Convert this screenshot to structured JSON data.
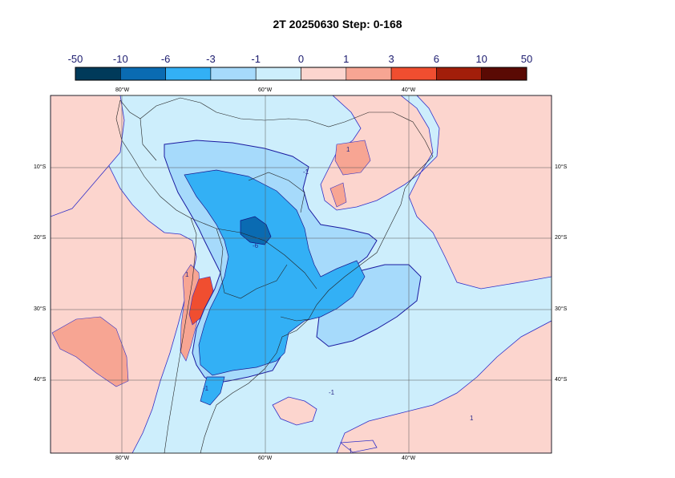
{
  "title": "2T 20250630 Step: 0-168",
  "colorbar": {
    "labels": [
      "-50",
      "-10",
      "-6",
      "-3",
      "-1",
      "0",
      "1",
      "3",
      "6",
      "10",
      "50"
    ],
    "colors": [
      "#003a5a",
      "#0a6bb2",
      "#33b0f5",
      "#a6dafb",
      "#cdeefc",
      "#fcd5ce",
      "#f7a593",
      "#f04e30",
      "#a21e0a",
      "#5a0a04"
    ]
  },
  "map": {
    "top_lon_labels": [
      "80°W",
      "60°W",
      "40°W"
    ],
    "bottom_lon_labels": [
      "80°W",
      "60°W",
      "40°W"
    ],
    "left_lat_labels": [
      "10°S",
      "20°S",
      "30°S",
      "40°S"
    ],
    "right_lat_labels": [
      "10°S",
      "20°S",
      "30°S",
      "40°S"
    ],
    "contour_labels": [
      "1",
      "-1",
      "-6",
      "-1",
      "1",
      "1",
      "-1",
      "1"
    ]
  }
}
